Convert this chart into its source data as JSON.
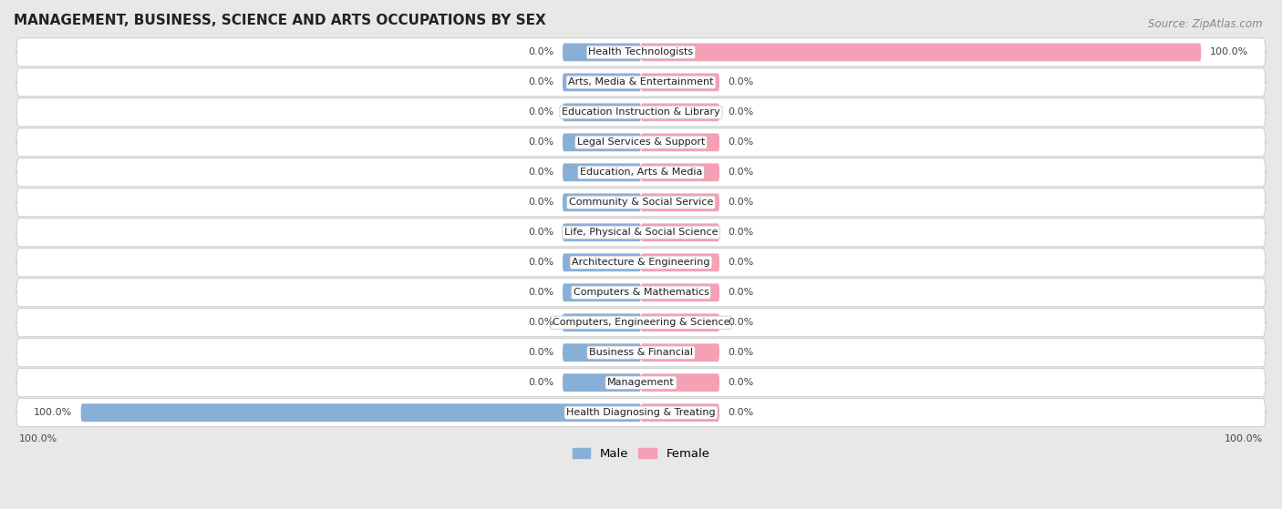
{
  "title": "MANAGEMENT, BUSINESS, SCIENCE AND ARTS OCCUPATIONS BY SEX",
  "source": "Source: ZipAtlas.com",
  "categories": [
    "Health Diagnosing & Treating",
    "Management",
    "Business & Financial",
    "Computers, Engineering & Science",
    "Computers & Mathematics",
    "Architecture & Engineering",
    "Life, Physical & Social Science",
    "Community & Social Service",
    "Education, Arts & Media",
    "Legal Services & Support",
    "Education Instruction & Library",
    "Arts, Media & Entertainment",
    "Health Technologists"
  ],
  "male_values": [
    100.0,
    0.0,
    0.0,
    0.0,
    0.0,
    0.0,
    0.0,
    0.0,
    0.0,
    0.0,
    0.0,
    0.0,
    0.0
  ],
  "female_values": [
    0.0,
    0.0,
    0.0,
    0.0,
    0.0,
    0.0,
    0.0,
    0.0,
    0.0,
    0.0,
    0.0,
    0.0,
    100.0
  ],
  "male_color": "#88afd8",
  "female_color": "#f5a0b5",
  "bg_color": "#e8e8e8",
  "min_bar_width": 14,
  "xlim": 112,
  "label_fontsize": 8.0,
  "title_fontsize": 11,
  "source_fontsize": 8.5
}
